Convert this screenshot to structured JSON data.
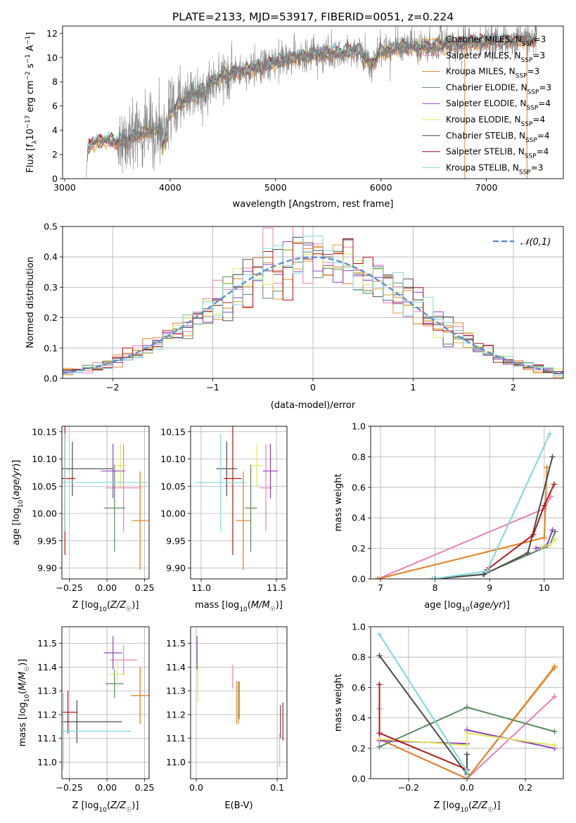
{
  "figure": {
    "title": "PLATE=2133, MJD=53917, FIBERID=0051, z=0.224"
  },
  "palette": [
    "#e2a02a",
    "#e67fb8",
    "#e0842e",
    "#5b8a5f",
    "#8f3fc2",
    "#dfe85a",
    "#4c4c4c",
    "#b01818",
    "#7fd8dc"
  ],
  "chart_data": [
    {
      "id": "spectrum",
      "type": "line",
      "xlabel": "wavelength [Angstrom, rest frame]",
      "ylabel": "Flux [f_λ10^-17 erg cm^-2 s^-1 A^-1]",
      "xlim": [
        2980,
        7730
      ],
      "ylim": [
        0,
        12.6
      ],
      "xticks": [
        3000,
        4000,
        5000,
        6000,
        7000
      ],
      "yticks": [
        0,
        2,
        4,
        6,
        8,
        10,
        12
      ],
      "grid": false,
      "legend_position": "upper-right",
      "series": [
        {
          "name": "Chabrier MILES, N_SSP=3",
          "color": "#e2a02a"
        },
        {
          "name": "Salpeter MILES, N_SSP=3",
          "color": "#e67fb8"
        },
        {
          "name": "Kroupa MILES, N_SSP=3",
          "color": "#e0842e"
        },
        {
          "name": "Chabrier ELODIE, N_SSP=3",
          "color": "#5b8a5f"
        },
        {
          "name": "Salpeter ELODIE, N_SSP=4",
          "color": "#8f3fc2"
        },
        {
          "name": "Kroupa ELODIE, N_SSP=4",
          "color": "#dfe85a"
        },
        {
          "name": "Chabrier STELIB, N_SSP=4",
          "color": "#4c4c4c"
        },
        {
          "name": "Salpeter STELIB, N_SSP=4",
          "color": "#b01818"
        },
        {
          "name": "Kroupa STELIB, N_SSP=3",
          "color": "#7fd8dc"
        }
      ],
      "continuum": {
        "x": [
          3200,
          3220,
          3250,
          3300,
          3400,
          3500,
          3600,
          3700,
          3800,
          3900,
          3950,
          4000,
          4100,
          4200,
          4300,
          4400,
          4500,
          4600,
          4800,
          5000,
          5200,
          5400,
          5600,
          5800,
          5900,
          6000,
          6200,
          6400,
          6600,
          6800,
          7000,
          7200,
          7400
        ],
        "y": [
          0,
          2.5,
          2.9,
          3.0,
          3.2,
          3.0,
          3.2,
          3.6,
          3.9,
          4.0,
          4.4,
          5.5,
          6.3,
          6.8,
          7.2,
          8.0,
          8.6,
          8.7,
          9.1,
          9.6,
          10.0,
          10.3,
          10.4,
          10.6,
          9.3,
          10.5,
          10.9,
          10.8,
          11.0,
          11.2,
          11.3,
          11.4,
          11.5
        ]
      },
      "observed_color": "#808080"
    },
    {
      "id": "residuals",
      "type": "step",
      "xlabel": "(data-model)/error",
      "ylabel": "Normed distribution",
      "xlim": [
        -2.5,
        2.5
      ],
      "ylim": [
        0,
        0.5
      ],
      "xticks": [
        -2,
        -1,
        0,
        1,
        2
      ],
      "yticks": [
        0.0,
        0.1,
        0.2,
        0.3,
        0.4,
        0.5
      ],
      "grid": true,
      "reference": {
        "name": "𝒩(0,1)",
        "color": "#5b8fd6",
        "style": "dashed",
        "mean": 0,
        "sigma": 1
      },
      "legend_position": "upper-right",
      "bin_width": 0.1
    },
    {
      "id": "age_vs_Z",
      "type": "errorbar",
      "xlabel": "Z [log10(Z/Z☉)]",
      "ylabel": "age  [log10(age/yr)]",
      "xlim": [
        -0.3,
        0.28
      ],
      "ylim": [
        9.88,
        10.16
      ],
      "xticks": [
        -0.25,
        0.0,
        0.25
      ],
      "yticks": [
        9.9,
        9.95,
        10.0,
        10.05,
        10.1,
        10.15
      ],
      "grid": true,
      "points": [
        {
          "x": 0.22,
          "y": 9.987,
          "xerr": 0.06,
          "yerr": 0.09,
          "color": "#e2a02a"
        },
        {
          "x": 0.11,
          "y": 10.047,
          "xerr": 0.12,
          "yerr": 0.08,
          "color": "#e67fb8"
        },
        {
          "x": 0.22,
          "y": 9.987,
          "xerr": 0.05,
          "yerr": 0.09,
          "color": "#e0842e"
        },
        {
          "x": 0.05,
          "y": 10.01,
          "xerr": 0.07,
          "yerr": 0.08,
          "color": "#5b8a5f"
        },
        {
          "x": 0.04,
          "y": 10.078,
          "xerr": 0.08,
          "yerr": 0.05,
          "color": "#8f3fc2"
        },
        {
          "x": 0.09,
          "y": 10.088,
          "xerr": 0.04,
          "yerr": 0.04,
          "color": "#dfe85a"
        },
        {
          "x": -0.23,
          "y": 10.082,
          "xerr": 0.27,
          "yerr": 0.05,
          "color": "#4c4c4c"
        },
        {
          "x": -0.28,
          "y": 10.064,
          "xerr": 0.07,
          "yerr": 0.14,
          "color": "#b01818"
        },
        {
          "x": -0.28,
          "y": 10.057,
          "xerr": 0.55,
          "yerr": 0.09,
          "color": "#7fd8dc"
        }
      ]
    },
    {
      "id": "age_vs_mass",
      "type": "errorbar",
      "xlabel": "mass [log10(M/M☉)]",
      "ylim": [
        9.88,
        10.16
      ],
      "xlim": [
        10.93,
        11.57
      ],
      "xticks": [
        11.0,
        11.5
      ],
      "yticks": [
        9.9,
        9.95,
        10.0,
        10.05,
        10.1,
        10.15
      ],
      "grid": true,
      "points": [
        {
          "x": 11.28,
          "y": 9.987,
          "xerr": 0.05,
          "yerr": 0.09,
          "color": "#e2a02a"
        },
        {
          "x": 11.43,
          "y": 10.047,
          "xerr": 0.04,
          "yerr": 0.08,
          "color": "#e67fb8"
        },
        {
          "x": 11.28,
          "y": 9.987,
          "xerr": 0.05,
          "yerr": 0.09,
          "color": "#e0842e"
        },
        {
          "x": 11.33,
          "y": 10.01,
          "xerr": 0.04,
          "yerr": 0.08,
          "color": "#5b8a5f"
        },
        {
          "x": 11.46,
          "y": 10.078,
          "xerr": 0.05,
          "yerr": 0.05,
          "color": "#8f3fc2"
        },
        {
          "x": 11.37,
          "y": 10.088,
          "xerr": 0.04,
          "yerr": 0.04,
          "color": "#dfe85a"
        },
        {
          "x": 11.17,
          "y": 10.082,
          "xerr": 0.07,
          "yerr": 0.05,
          "color": "#4c4c4c"
        },
        {
          "x": 11.21,
          "y": 10.064,
          "xerr": 0.06,
          "yerr": 0.14,
          "color": "#b01818"
        },
        {
          "x": 11.13,
          "y": 10.057,
          "xerr": 0.17,
          "yerr": 0.09,
          "color": "#7fd8dc"
        }
      ]
    },
    {
      "id": "weight_vs_age",
      "type": "line",
      "xlabel": "age  [log10(age/yr)]",
      "ylabel": "mass weight",
      "xlim": [
        6.82,
        10.35
      ],
      "ylim": [
        0,
        1.0
      ],
      "xticks": [
        7,
        8,
        9,
        10
      ],
      "yticks": [
        0.0,
        0.2,
        0.4,
        0.6,
        0.8,
        1.0
      ],
      "grid": true,
      "series": [
        {
          "color": "#e2a02a",
          "x": [
            6.95,
            10.0,
            10.05
          ],
          "y": [
            0,
            0.27,
            0.73
          ]
        },
        {
          "color": "#e67fb8",
          "x": [
            6.95,
            10.0,
            10.12
          ],
          "y": [
            0,
            0.46,
            0.54
          ]
        },
        {
          "color": "#e0842e",
          "x": [
            6.95,
            10.0,
            10.05
          ],
          "y": [
            0,
            0.27,
            0.73
          ]
        },
        {
          "color": "#5b8a5f",
          "x": [
            7.95,
            8.88,
            10.1,
            10.2
          ],
          "y": [
            0,
            0.03,
            0.22,
            0.31
          ]
        },
        {
          "color": "#8f3fc2",
          "x": [
            9.85,
            10.05,
            10.15
          ],
          "y": [
            0.2,
            0.22,
            0.32
          ]
        },
        {
          "color": "#dfe85a",
          "x": [
            9.95,
            10.1,
            10.2
          ],
          "y": [
            0.21,
            0.22,
            0.26
          ]
        },
        {
          "color": "#4c4c4c",
          "x": [
            8.0,
            8.9,
            9.7,
            10.15
          ],
          "y": [
            0,
            0.03,
            0.17,
            0.8
          ]
        },
        {
          "color": "#b01818",
          "x": [
            8.95,
            9.8,
            10.0,
            10.18
          ],
          "y": [
            0.06,
            0.29,
            0.48,
            0.62
          ]
        },
        {
          "color": "#7fd8dc",
          "x": [
            7.95,
            8.95,
            10.1
          ],
          "y": [
            0,
            0.05,
            0.95
          ]
        }
      ]
    },
    {
      "id": "mass_vs_Z",
      "type": "errorbar",
      "xlabel": "Z [log10(Z/Z☉)]",
      "ylabel": "mass [log10(M/M☉)]",
      "xlim": [
        -0.3,
        0.28
      ],
      "ylim": [
        10.93,
        11.57
      ],
      "xticks": [
        -0.25,
        0.0,
        0.25
      ],
      "yticks": [
        11.0,
        11.1,
        11.2,
        11.3,
        11.4,
        11.5
      ],
      "grid": true,
      "points": [
        {
          "x": 0.22,
          "y": 11.28,
          "xerr": 0.06,
          "yerr": 0.12,
          "color": "#e2a02a"
        },
        {
          "x": 0.11,
          "y": 11.43,
          "xerr": 0.09,
          "yerr": 0.06,
          "color": "#e67fb8"
        },
        {
          "x": 0.22,
          "y": 11.28,
          "xerr": 0.06,
          "yerr": 0.12,
          "color": "#e0842e"
        },
        {
          "x": 0.05,
          "y": 11.33,
          "xerr": 0.06,
          "yerr": 0.06,
          "color": "#5b8a5f"
        },
        {
          "x": 0.04,
          "y": 11.46,
          "xerr": 0.06,
          "yerr": 0.07,
          "color": "#8f3fc2"
        },
        {
          "x": 0.07,
          "y": 11.37,
          "xerr": 0.05,
          "yerr": 0.06,
          "color": "#dfe85a"
        },
        {
          "x": -0.2,
          "y": 11.17,
          "xerr": 0.3,
          "yerr": 0.09,
          "color": "#4c4c4c"
        },
        {
          "x": -0.26,
          "y": 11.21,
          "xerr": 0.06,
          "yerr": 0.09,
          "color": "#b01818"
        },
        {
          "x": -0.29,
          "y": 11.13,
          "xerr": 0.45,
          "yerr": 0.16,
          "color": "#7fd8dc"
        }
      ]
    },
    {
      "id": "mass_vs_ebv",
      "type": "errorbar",
      "xlabel": "E(B-V)",
      "xlim": [
        -0.007,
        0.112
      ],
      "ylim": [
        10.93,
        11.57
      ],
      "xticks": [
        0.0,
        0.1
      ],
      "yticks": [
        11.0,
        11.1,
        11.2,
        11.3,
        11.4,
        11.5
      ],
      "grid": true,
      "points": [
        {
          "x": 0.052,
          "y": 11.25,
          "xerr": 0.0,
          "yerr": 0.09,
          "color": "#e2a02a"
        },
        {
          "x": 0.045,
          "y": 11.36,
          "xerr": 0.0,
          "yerr": 0.05,
          "color": "#e67fb8"
        },
        {
          "x": 0.05,
          "y": 11.25,
          "xerr": 0.0,
          "yerr": 0.09,
          "color": "#e0842e"
        },
        {
          "x": 0.053,
          "y": 11.26,
          "xerr": 0.0,
          "yerr": 0.08,
          "color": "#5b8a5f"
        },
        {
          "x": 0.001,
          "y": 11.46,
          "xerr": 0.0,
          "yerr": 0.07,
          "color": "#8f3fc2"
        },
        {
          "x": 0.002,
          "y": 11.33,
          "xerr": 0.0,
          "yerr": 0.08,
          "color": "#dfe85a"
        },
        {
          "x": 0.104,
          "y": 11.17,
          "xerr": 0.0,
          "yerr": 0.07,
          "color": "#4c4c4c"
        },
        {
          "x": 0.107,
          "y": 11.17,
          "xerr": 0.0,
          "yerr": 0.08,
          "color": "#b01818"
        },
        {
          "x": 0.103,
          "y": 11.05,
          "xerr": 0.0,
          "yerr": 0.07,
          "color": "#7fd8dc"
        }
      ]
    },
    {
      "id": "weight_vs_Z",
      "type": "line",
      "xlabel": "Z [log10(Z/Z☉)]",
      "ylabel": "mass weight",
      "xlim": [
        -0.33,
        0.33
      ],
      "ylim": [
        0,
        1.0
      ],
      "xticks": [
        -0.2,
        0.0,
        0.2
      ],
      "yticks": [
        0.0,
        0.2,
        0.4,
        0.6,
        0.8,
        1.0
      ],
      "grid": true,
      "series": [
        {
          "color": "#e2a02a",
          "x": [
            -0.3,
            0.0,
            0.3
          ],
          "y": [
            0.26,
            0.0,
            0.74
          ]
        },
        {
          "color": "#e67fb8",
          "x": [
            -0.3,
            -0.3,
            0.0,
            0.3
          ],
          "y": [
            0.46,
            0.26,
            0.0,
            0.54
          ]
        },
        {
          "color": "#e0842e",
          "x": [
            -0.3,
            0.0,
            0.3
          ],
          "y": [
            0.26,
            0.0,
            0.73
          ]
        },
        {
          "color": "#5b8a5f",
          "x": [
            -0.3,
            0.0,
            0.3
          ],
          "y": [
            0.21,
            0.47,
            0.31
          ]
        },
        {
          "color": "#8f3fc2",
          "x": [
            -0.3,
            0.0,
            0.0,
            0.3
          ],
          "y": [
            0.25,
            0.23,
            0.32,
            0.2
          ]
        },
        {
          "color": "#dfe85a",
          "x": [
            -0.3,
            0.0,
            0.0,
            0.3
          ],
          "y": [
            0.26,
            0.22,
            0.3,
            0.22
          ]
        },
        {
          "color": "#4c4c4c",
          "x": [
            -0.3,
            0.0,
            0.0
          ],
          "y": [
            0.81,
            0.03,
            0.16
          ]
        },
        {
          "color": "#b01818",
          "x": [
            -0.3,
            -0.3,
            0.0
          ],
          "y": [
            0.62,
            0.3,
            0.06
          ]
        },
        {
          "color": "#7fd8dc",
          "x": [
            -0.3,
            0.0,
            0.0
          ],
          "y": [
            0.95,
            0.05,
            0.0
          ]
        }
      ]
    }
  ]
}
